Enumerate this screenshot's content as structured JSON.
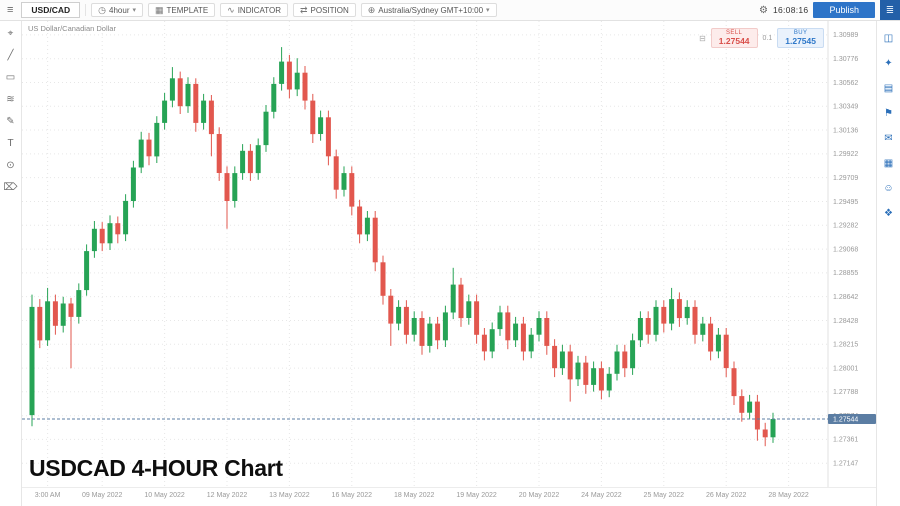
{
  "topbar": {
    "symbol": "USD/CAD",
    "timeframe": "4hour",
    "template_label": "TEMPLATE",
    "indicator_label": "INDICATOR",
    "position_label": "POSITION",
    "timezone": "Australia/Sydney GMT+10:00",
    "clock": "16:08:16",
    "publish_label": "Publish"
  },
  "chart": {
    "instrument_title": "US Dollar/Canadian Dollar",
    "watermark": "USDCAD 4-HOUR Chart",
    "trade_widget": {
      "sell_label": "SELL",
      "sell_price": "1.27544",
      "spread": "0.1",
      "buy_label": "BUY",
      "buy_price": "1.27545"
    }
  },
  "colors": {
    "up": "#26a355",
    "down": "#e2574e",
    "accent": "#2d74c8",
    "price_badge": "#5b7da3",
    "grid": "#e7e7e7",
    "axis_text": "#999999"
  },
  "icons": {
    "menu": {
      "name": "menu-icon",
      "glyph": "≡"
    },
    "timeframe": {
      "name": "clock-icon",
      "glyph": "◷"
    },
    "template": {
      "name": "template-icon",
      "glyph": "▦"
    },
    "indicator": {
      "name": "indicator-icon",
      "glyph": "∿"
    },
    "position": {
      "name": "position-icon",
      "glyph": "⇄"
    },
    "timezone": {
      "name": "globe-icon",
      "glyph": "⊕"
    },
    "gear": {
      "name": "gear-icon",
      "glyph": "⚙"
    },
    "layers": {
      "name": "layers-icon",
      "glyph": "≣"
    },
    "caret": {
      "name": "caret-down-icon",
      "glyph": "▾"
    },
    "trade_menu": {
      "name": "trade-widget-menu-icon",
      "glyph": "⊟"
    },
    "left_toolbar": [
      {
        "name": "crosshair-icon",
        "glyph": "⌖"
      },
      {
        "name": "trendline-icon",
        "glyph": "╱"
      },
      {
        "name": "rectangle-icon",
        "glyph": "▭"
      },
      {
        "name": "fibonacci-icon",
        "glyph": "≋"
      },
      {
        "name": "brush-icon",
        "glyph": "✎"
      },
      {
        "name": "text-icon",
        "glyph": "T"
      },
      {
        "name": "magnet-icon",
        "glyph": "⊙"
      },
      {
        "name": "trash-icon",
        "glyph": "⌦"
      }
    ],
    "right_sidebar": [
      {
        "name": "templates-icon",
        "glyph": "◫"
      },
      {
        "name": "ideas-icon",
        "glyph": "✦"
      },
      {
        "name": "watchlist-icon",
        "glyph": "▤"
      },
      {
        "name": "alerts-icon",
        "glyph": "⚑"
      },
      {
        "name": "chat-icon",
        "glyph": "✉"
      },
      {
        "name": "calendar-icon",
        "glyph": "▦"
      },
      {
        "name": "profile-icon",
        "glyph": "☺"
      },
      {
        "name": "community-icon",
        "glyph": "❖"
      }
    ]
  },
  "chart_data": {
    "type": "candlestick",
    "title": "US Dollar/Canadian Dollar",
    "instrument": "USD/CAD",
    "candle_interval": "4-hour",
    "current_price": 1.27544,
    "price_range": [
      1.2706,
      1.3106
    ],
    "price_axis_labels": [
      "1.30989",
      "1.30776",
      "1.30562",
      "1.30349",
      "1.30136",
      "1.29922",
      "1.29709",
      "1.29495",
      "1.29282",
      "1.29068",
      "1.28855",
      "1.28642",
      "1.28428",
      "1.28215",
      "1.28001",
      "1.27788",
      "1.27574",
      "1.27361",
      "1.27147"
    ],
    "time_axis_labels": [
      {
        "label": "3:00 AM",
        "index": 2
      },
      {
        "label": "09 May 2022",
        "index": 9
      },
      {
        "label": "10 May 2022",
        "index": 17
      },
      {
        "label": "12 May 2022",
        "index": 25
      },
      {
        "label": "13 May 2022",
        "index": 33
      },
      {
        "label": "16 May 2022",
        "index": 41
      },
      {
        "label": "18 May 2022",
        "index": 49
      },
      {
        "label": "19 May 2022",
        "index": 57
      },
      {
        "label": "20 May 2022",
        "index": 65
      },
      {
        "label": "24 May 2022",
        "index": 73
      },
      {
        "label": "25 May 2022",
        "index": 81
      },
      {
        "label": "26 May 2022",
        "index": 89
      },
      {
        "label": "28 May 2022",
        "index": 97
      }
    ],
    "ohlc_format": [
      "open",
      "high",
      "low",
      "close"
    ],
    "candles_ohlc": [
      [
        1.2758,
        1.2866,
        1.2748,
        1.2855
      ],
      [
        1.2855,
        1.2862,
        1.2818,
        1.2825
      ],
      [
        1.2825,
        1.2872,
        1.282,
        1.286
      ],
      [
        1.286,
        1.2866,
        1.283,
        1.2838
      ],
      [
        1.2838,
        1.2864,
        1.2832,
        1.2858
      ],
      [
        1.2858,
        1.2863,
        1.28,
        1.2846
      ],
      [
        1.2846,
        1.2876,
        1.284,
        1.287
      ],
      [
        1.287,
        1.2911,
        1.2865,
        1.2905
      ],
      [
        1.2905,
        1.2932,
        1.2899,
        1.2925
      ],
      [
        1.2925,
        1.2931,
        1.2905,
        1.2912
      ],
      [
        1.2912,
        1.2937,
        1.2906,
        1.293
      ],
      [
        1.293,
        1.2936,
        1.2912,
        1.292
      ],
      [
        1.292,
        1.2956,
        1.2914,
        1.295
      ],
      [
        1.295,
        1.2986,
        1.2944,
        1.298
      ],
      [
        1.298,
        1.3012,
        1.2975,
        1.3005
      ],
      [
        1.3005,
        1.3011,
        1.2982,
        1.299
      ],
      [
        1.299,
        1.3026,
        1.2984,
        1.302
      ],
      [
        1.302,
        1.3047,
        1.3014,
        1.304
      ],
      [
        1.304,
        1.307,
        1.3034,
        1.306
      ],
      [
        1.306,
        1.3066,
        1.3028,
        1.3035
      ],
      [
        1.3035,
        1.3061,
        1.3029,
        1.3055
      ],
      [
        1.3055,
        1.306,
        1.3012,
        1.302
      ],
      [
        1.302,
        1.3046,
        1.3014,
        1.304
      ],
      [
        1.304,
        1.3045,
        1.299,
        1.301
      ],
      [
        1.301,
        1.3016,
        1.2968,
        1.2975
      ],
      [
        1.2975,
        1.2981,
        1.2925,
        1.295
      ],
      [
        1.295,
        1.2981,
        1.2944,
        1.2975
      ],
      [
        1.2975,
        1.3001,
        1.2969,
        1.2995
      ],
      [
        1.2995,
        1.3001,
        1.2968,
        1.2975
      ],
      [
        1.2975,
        1.3006,
        1.2969,
        1.3
      ],
      [
        1.3,
        1.3036,
        1.2994,
        1.303
      ],
      [
        1.303,
        1.3061,
        1.3024,
        1.3055
      ],
      [
        1.3055,
        1.3088,
        1.3049,
        1.3075
      ],
      [
        1.3075,
        1.3081,
        1.3042,
        1.305
      ],
      [
        1.305,
        1.3078,
        1.3044,
        1.3065
      ],
      [
        1.3065,
        1.3071,
        1.3032,
        1.304
      ],
      [
        1.304,
        1.3046,
        1.3002,
        1.301
      ],
      [
        1.301,
        1.3031,
        1.3004,
        1.3025
      ],
      [
        1.3025,
        1.3031,
        1.2982,
        1.299
      ],
      [
        1.299,
        1.2996,
        1.2952,
        1.296
      ],
      [
        1.296,
        1.2981,
        1.2954,
        1.2975
      ],
      [
        1.2975,
        1.2981,
        1.2937,
        1.2945
      ],
      [
        1.2945,
        1.2951,
        1.2912,
        1.292
      ],
      [
        1.292,
        1.2941,
        1.2914,
        1.2935
      ],
      [
        1.2935,
        1.2941,
        1.2887,
        1.2895
      ],
      [
        1.2895,
        1.2901,
        1.2857,
        1.2865
      ],
      [
        1.2865,
        1.2871,
        1.282,
        1.284
      ],
      [
        1.284,
        1.2861,
        1.2834,
        1.2855
      ],
      [
        1.2855,
        1.2861,
        1.2822,
        1.283
      ],
      [
        1.283,
        1.2851,
        1.2824,
        1.2845
      ],
      [
        1.2845,
        1.2851,
        1.2812,
        1.282
      ],
      [
        1.282,
        1.2846,
        1.2814,
        1.284
      ],
      [
        1.284,
        1.2846,
        1.2817,
        1.2825
      ],
      [
        1.2825,
        1.2856,
        1.2819,
        1.285
      ],
      [
        1.285,
        1.289,
        1.2844,
        1.2875
      ],
      [
        1.2875,
        1.2881,
        1.2837,
        1.2845
      ],
      [
        1.2845,
        1.2866,
        1.2839,
        1.286
      ],
      [
        1.286,
        1.2866,
        1.2822,
        1.283
      ],
      [
        1.283,
        1.2836,
        1.2807,
        1.2815
      ],
      [
        1.2815,
        1.2841,
        1.2809,
        1.2835
      ],
      [
        1.2835,
        1.2856,
        1.2829,
        1.285
      ],
      [
        1.285,
        1.2856,
        1.2817,
        1.2825
      ],
      [
        1.2825,
        1.2846,
        1.2819,
        1.284
      ],
      [
        1.284,
        1.2846,
        1.2807,
        1.2815
      ],
      [
        1.2815,
        1.2836,
        1.2809,
        1.283
      ],
      [
        1.283,
        1.2851,
        1.2824,
        1.2845
      ],
      [
        1.2845,
        1.2851,
        1.2812,
        1.282
      ],
      [
        1.282,
        1.2826,
        1.2792,
        1.28
      ],
      [
        1.28,
        1.2821,
        1.2794,
        1.2815
      ],
      [
        1.2815,
        1.2821,
        1.277,
        1.279
      ],
      [
        1.279,
        1.2811,
        1.2784,
        1.2805
      ],
      [
        1.2805,
        1.2811,
        1.2777,
        1.2785
      ],
      [
        1.2785,
        1.2806,
        1.2779,
        1.28
      ],
      [
        1.28,
        1.2806,
        1.2772,
        1.278
      ],
      [
        1.278,
        1.2801,
        1.2774,
        1.2795
      ],
      [
        1.2795,
        1.2821,
        1.2789,
        1.2815
      ],
      [
        1.2815,
        1.2821,
        1.2792,
        1.28
      ],
      [
        1.28,
        1.2831,
        1.2794,
        1.2825
      ],
      [
        1.2825,
        1.2851,
        1.2819,
        1.2845
      ],
      [
        1.2845,
        1.2851,
        1.2822,
        1.283
      ],
      [
        1.283,
        1.2861,
        1.2824,
        1.2855
      ],
      [
        1.2855,
        1.2861,
        1.2832,
        1.284
      ],
      [
        1.284,
        1.2872,
        1.2834,
        1.2862
      ],
      [
        1.2862,
        1.2868,
        1.2837,
        1.2845
      ],
      [
        1.2845,
        1.2861,
        1.2839,
        1.2855
      ],
      [
        1.2855,
        1.2861,
        1.2822,
        1.283
      ],
      [
        1.283,
        1.2846,
        1.2824,
        1.284
      ],
      [
        1.284,
        1.2846,
        1.2807,
        1.2815
      ],
      [
        1.2815,
        1.2836,
        1.2809,
        1.283
      ],
      [
        1.283,
        1.2836,
        1.2792,
        1.28
      ],
      [
        1.28,
        1.2806,
        1.2767,
        1.2775
      ],
      [
        1.2775,
        1.2781,
        1.2752,
        1.276
      ],
      [
        1.276,
        1.2776,
        1.2754,
        1.277
      ],
      [
        1.277,
        1.2776,
        1.2735,
        1.2745
      ],
      [
        1.2745,
        1.2751,
        1.273,
        1.2738
      ],
      [
        1.2738,
        1.276,
        1.2733,
        1.27544
      ]
    ]
  }
}
